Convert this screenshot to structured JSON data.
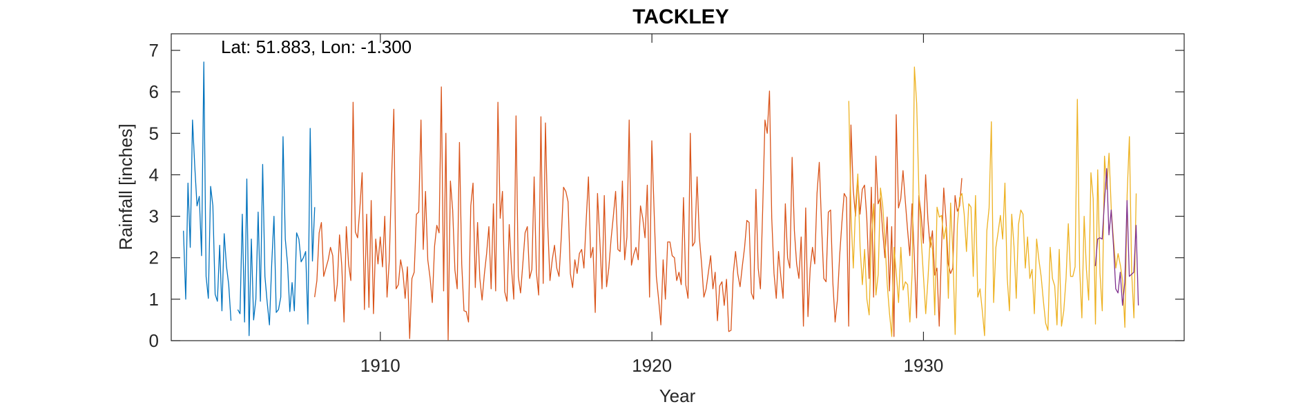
{
  "chart_data": {
    "type": "line",
    "title": "TACKLEY",
    "annotation": "Lat: 51.883, Lon: -1.300",
    "xlabel": "Year",
    "ylabel": "Rainfall [inches]",
    "xlim": [
      1902.3,
      1939.6
    ],
    "ylim": [
      0,
      7.4
    ],
    "xticks": [
      1910,
      1920,
      1930
    ],
    "yticks": [
      0,
      1,
      2,
      3,
      4,
      5,
      6,
      7
    ],
    "grid": false,
    "series": [
      {
        "color": "#0072BD",
        "x_start": 1902.75,
        "x_step": 0.0833333,
        "values": [
          2.65,
          1.0,
          3.8,
          2.25,
          5.32,
          4.2,
          3.25,
          3.48,
          2.05,
          6.72,
          1.55,
          1.02,
          3.72,
          3.25,
          1.12,
          0.95,
          2.3,
          0.72,
          2.58,
          1.8,
          1.35,
          0.48,
          null,
          null,
          0.75,
          0.65,
          3.05,
          0.45,
          3.9,
          0.12,
          2.45,
          0.5,
          1.0,
          3.1,
          0.95,
          4.25,
          1.55,
          0.92,
          0.38,
          1.85,
          3.0,
          0.68,
          0.75,
          1.05,
          4.92,
          2.45,
          1.85,
          0.7,
          1.4,
          0.72,
          2.6,
          2.45,
          1.9,
          2.0,
          2.15,
          0.4,
          5.12,
          1.92,
          3.22
        ]
      },
      {
        "color": "#D95319",
        "x_start": 1907.58,
        "x_step": 0.0833333,
        "values": [
          1.05,
          1.45,
          2.6,
          2.85,
          1.55,
          1.75,
          1.95,
          2.25,
          2.05,
          0.95,
          1.35,
          2.55,
          1.8,
          0.45,
          2.75,
          1.85,
          1.45,
          5.75,
          2.62,
          2.48,
          3.2,
          4.05,
          0.75,
          3.05,
          0.8,
          3.38,
          0.65,
          2.45,
          1.85,
          2.5,
          1.78,
          3.0,
          1.05,
          1.95,
          3.9,
          5.58,
          1.25,
          1.35,
          1.95,
          1.65,
          1.02,
          1.78,
          0.05,
          1.5,
          1.65,
          3.05,
          3.1,
          5.32,
          2.2,
          3.6,
          1.95,
          1.52,
          0.92,
          2.28,
          2.78,
          2.6,
          6.12,
          1.2,
          5.0,
          0.02,
          3.85,
          3.15,
          1.7,
          1.25,
          4.78,
          1.85,
          0.72,
          0.7,
          0.45,
          3.25,
          3.8,
          1.28,
          2.85,
          1.5,
          0.98,
          1.6,
          2.1,
          2.75,
          1.25,
          3.3,
          1.2,
          5.75,
          2.95,
          3.6,
          1.18,
          0.95,
          2.8,
          1.75,
          1.0,
          5.42,
          1.55,
          1.15,
          1.85,
          2.6,
          2.75,
          1.5,
          1.72,
          3.95,
          1.65,
          1.1,
          5.4,
          1.38,
          5.25,
          2.8,
          1.45,
          1.95,
          2.3,
          1.75,
          1.55,
          2.5,
          3.7,
          3.6,
          3.35,
          1.62,
          1.28,
          1.95,
          1.62,
          2.1,
          2.2,
          1.75,
          2.9,
          3.95,
          2.0,
          2.25,
          0.68,
          3.55,
          2.45,
          1.25,
          3.5,
          1.3,
          1.75,
          2.45,
          3.0,
          3.6,
          2.2,
          2.15,
          3.85,
          1.95,
          2.5,
          5.32,
          1.82,
          2.08,
          2.25,
          1.95,
          3.25,
          2.95,
          2.48,
          3.75,
          1.05,
          4.82,
          3.15,
          1.55,
          1.0,
          0.38,
          1.95,
          1.0,
          2.38,
          2.38,
          2.05,
          2.0,
          1.45,
          1.65,
          1.35,
          3.45,
          1.35,
          1.02,
          5.0,
          2.28,
          2.38,
          3.95,
          2.5,
          1.85,
          1.05,
          1.25,
          1.65,
          2.05,
          1.25,
          1.65,
          0.48,
          1.32,
          1.42,
          0.85,
          1.48,
          0.22,
          0.25,
          1.62,
          2.15,
          1.6,
          1.3,
          1.8,
          2.25,
          2.9,
          2.85,
          1.15,
          1.0,
          3.65,
          1.75,
          1.25,
          3.18,
          5.32,
          5.0,
          6.02,
          2.95,
          1.62,
          1.02,
          2.15,
          1.55,
          1.02,
          3.3,
          2.0,
          1.75,
          4.42,
          2.65,
          1.85,
          1.5,
          2.5,
          0.35,
          3.2,
          0.58,
          1.75,
          2.25,
          1.85,
          3.55,
          4.3,
          2.8,
          1.5,
          1.42,
          3.1,
          3.15,
          1.4,
          0.45,
          0.98,
          2.05,
          2.85,
          3.55,
          3.45,
          0.35,
          5.2,
          3.65,
          3.0,
          3.9,
          3.05,
          3.65,
          3.75,
          2.95,
          1.5,
          3.7,
          1.05,
          4.45,
          3.3,
          3.45,
          2.65,
          2.0,
          2.98,
          1.2,
          2.75,
          0.1,
          5.45,
          3.2,
          3.42,
          4.1,
          3.38,
          2.68,
          2.05,
          3.3,
          2.02,
          0.55,
          3.5,
          3.05,
          2.35,
          4.0,
          2.92,
          2.25,
          2.65,
          1.58,
          1.75,
          0.35,
          2.2,
          3.68,
          2.92,
          1.85,
          1.62,
          1.75,
          3.5,
          3.12,
          3.25,
          3.92
        ]
      },
      {
        "color": "#EDB120",
        "x_start": 1927.25,
        "x_step": 0.0833333,
        "values": [
          5.78,
          3.0,
          1.75,
          3.25,
          4.02,
          2.25,
          1.35,
          2.2,
          1.0,
          0.62,
          2.55,
          3.3,
          1.1,
          1.6,
          3.68,
          3.25,
          2.38,
          1.35,
          0.65,
          0.1,
          2.25,
          1.62,
          0.92,
          2.25,
          1.22,
          1.42,
          1.35,
          0.45,
          1.65,
          6.6,
          5.72,
          3.55,
          2.45,
          1.55,
          0.65,
          1.5,
          2.5,
          2.2,
          0.62,
          3.22,
          2.98,
          3.02,
          2.45,
          2.75,
          1.02,
          3.32,
          2.1,
          0.15,
          2.8,
          3.45,
          3.55,
          3.05,
          2.15,
          3.3,
          3.22,
          1.55,
          3.5,
          1.05,
          1.25,
          0.72,
          0.12,
          2.65,
          3.2,
          5.28,
          0.92,
          2.25,
          2.62,
          3.02,
          2.45,
          3.8,
          1.52,
          0.72,
          3.05,
          2.28,
          1.02,
          2.8,
          3.15,
          3.05,
          1.75,
          2.5,
          1.5,
          1.72,
          0.65,
          2.45,
          1.95,
          1.55,
          0.95,
          0.42,
          0.25,
          2.25,
          1.5,
          1.32,
          0.38,
          2.2,
          0.35,
          0.72,
          1.5,
          2.82,
          1.55,
          1.55,
          1.78,
          5.82,
          1.75,
          0.55,
          3.0,
          1.72,
          0.98,
          4.05,
          3.42,
          0.4,
          4.12,
          1.62,
          0.72,
          4.45,
          3.65,
          4.52,
          3.15,
          2.42,
          1.75,
          2.1,
          1.82,
          1.45,
          0.32,
          3.52,
          4.92,
          1.65,
          0.55,
          3.55
        ]
      },
      {
        "color": "#7E2F8E",
        "x_start": 1936.33,
        "x_step": 0.0833333,
        "values": [
          1.8,
          2.45,
          2.48,
          2.45,
          3.32,
          4.15,
          2.55,
          3.15,
          2.3,
          1.25,
          1.15,
          1.65,
          0.85,
          1.4,
          3.38,
          1.55,
          1.6,
          1.65,
          2.78,
          0.85
        ]
      }
    ]
  }
}
